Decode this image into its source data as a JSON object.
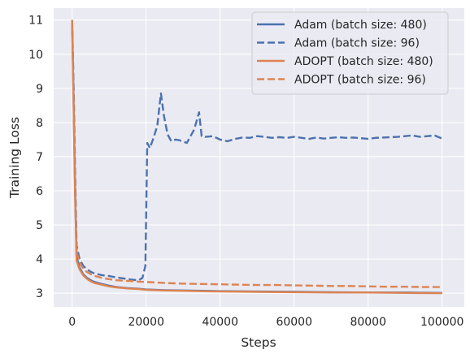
{
  "chart_data": {
    "type": "line",
    "title": "",
    "xlabel": "Steps",
    "ylabel": "Training Loss",
    "xlim": [
      -5000,
      106000
    ],
    "ylim": [
      2.6,
      11.35
    ],
    "xticks": [
      0,
      20000,
      40000,
      60000,
      80000,
      100000
    ],
    "xtick_labels": [
      "0",
      "20000",
      "40000",
      "60000",
      "80000",
      "100000"
    ],
    "yticks": [
      3,
      4,
      5,
      6,
      7,
      8,
      9,
      10,
      11
    ],
    "ytick_labels": [
      "3",
      "4",
      "5",
      "6",
      "7",
      "8",
      "9",
      "10",
      "11"
    ],
    "grid": true,
    "legend_position": "top-right",
    "colors": {
      "background": "#eaeaf2",
      "grid": "#ffffff",
      "adam": "#4c72b0",
      "adopt": "#dd8452"
    },
    "series": [
      {
        "name": "Adam (batch size: 480)",
        "color": "#4c72b0",
        "dash": "solid",
        "x": [
          0,
          400,
          800,
          1200,
          2000,
          3000,
          4000,
          5000,
          6000,
          8000,
          10000,
          12000,
          15000,
          18000,
          20000,
          25000,
          30000,
          35000,
          40000,
          50000,
          60000,
          70000,
          80000,
          90000,
          100000
        ],
        "y": [
          11.0,
          8.5,
          6.0,
          4.05,
          3.75,
          3.55,
          3.45,
          3.38,
          3.33,
          3.27,
          3.22,
          3.18,
          3.15,
          3.13,
          3.11,
          3.09,
          3.08,
          3.07,
          3.06,
          3.05,
          3.04,
          3.03,
          3.02,
          3.02,
          3.01
        ]
      },
      {
        "name": "Adam (batch size: 96)",
        "color": "#4c72b0",
        "dash": "dashed",
        "x": [
          0,
          400,
          800,
          1200,
          2000,
          3000,
          4000,
          5000,
          6000,
          8000,
          10000,
          12000,
          14000,
          16000,
          18000,
          19000,
          19800,
          20300,
          21000,
          22000,
          23000,
          24000,
          24800,
          25800,
          26800,
          28000,
          29000,
          31000,
          33000,
          34300,
          35000,
          36000,
          38000,
          40000,
          42000,
          44000,
          46000,
          48000,
          50000,
          52000,
          54000,
          56000,
          58000,
          60000,
          62000,
          64000,
          66000,
          68000,
          70000,
          72000,
          74000,
          76000,
          78000,
          80000,
          82000,
          84000,
          86000,
          88000,
          90000,
          92000,
          94000,
          96000,
          98000,
          100000
        ],
        "y": [
          11.0,
          9.0,
          6.5,
          4.4,
          4.0,
          3.8,
          3.7,
          3.63,
          3.58,
          3.53,
          3.5,
          3.46,
          3.43,
          3.4,
          3.38,
          3.45,
          3.8,
          7.4,
          7.25,
          7.55,
          7.9,
          8.85,
          8.2,
          7.65,
          7.45,
          7.5,
          7.48,
          7.4,
          7.8,
          8.3,
          7.6,
          7.58,
          7.6,
          7.5,
          7.45,
          7.52,
          7.56,
          7.55,
          7.6,
          7.58,
          7.55,
          7.57,
          7.55,
          7.58,
          7.55,
          7.52,
          7.56,
          7.53,
          7.55,
          7.57,
          7.55,
          7.56,
          7.54,
          7.52,
          7.55,
          7.56,
          7.57,
          7.58,
          7.6,
          7.62,
          7.58,
          7.6,
          7.62,
          7.53
        ]
      },
      {
        "name": "ADOPT (batch size: 480)",
        "color": "#dd8452",
        "dash": "solid",
        "x": [
          0,
          400,
          800,
          1200,
          2000,
          3000,
          4000,
          5000,
          6000,
          8000,
          10000,
          12000,
          15000,
          18000,
          20000,
          25000,
          30000,
          35000,
          40000,
          50000,
          60000,
          70000,
          80000,
          90000,
          100000
        ],
        "y": [
          11.0,
          8.3,
          5.8,
          3.95,
          3.7,
          3.52,
          3.42,
          3.35,
          3.3,
          3.25,
          3.2,
          3.17,
          3.14,
          3.12,
          3.1,
          3.08,
          3.07,
          3.06,
          3.05,
          3.04,
          3.03,
          3.02,
          3.02,
          3.01,
          3.0
        ]
      },
      {
        "name": "ADOPT (batch size: 96)",
        "color": "#dd8452",
        "dash": "dashed",
        "x": [
          0,
          400,
          800,
          1200,
          2000,
          3000,
          4000,
          5000,
          6000,
          8000,
          10000,
          12000,
          15000,
          18000,
          20000,
          25000,
          30000,
          35000,
          40000,
          45000,
          50000,
          55000,
          60000,
          65000,
          70000,
          75000,
          80000,
          85000,
          90000,
          95000,
          100000
        ],
        "y": [
          11.0,
          8.8,
          6.2,
          4.2,
          3.9,
          3.72,
          3.62,
          3.56,
          3.51,
          3.45,
          3.41,
          3.38,
          3.36,
          3.34,
          3.33,
          3.3,
          3.28,
          3.27,
          3.26,
          3.25,
          3.24,
          3.24,
          3.23,
          3.22,
          3.21,
          3.21,
          3.2,
          3.19,
          3.19,
          3.18,
          3.18
        ]
      }
    ]
  }
}
